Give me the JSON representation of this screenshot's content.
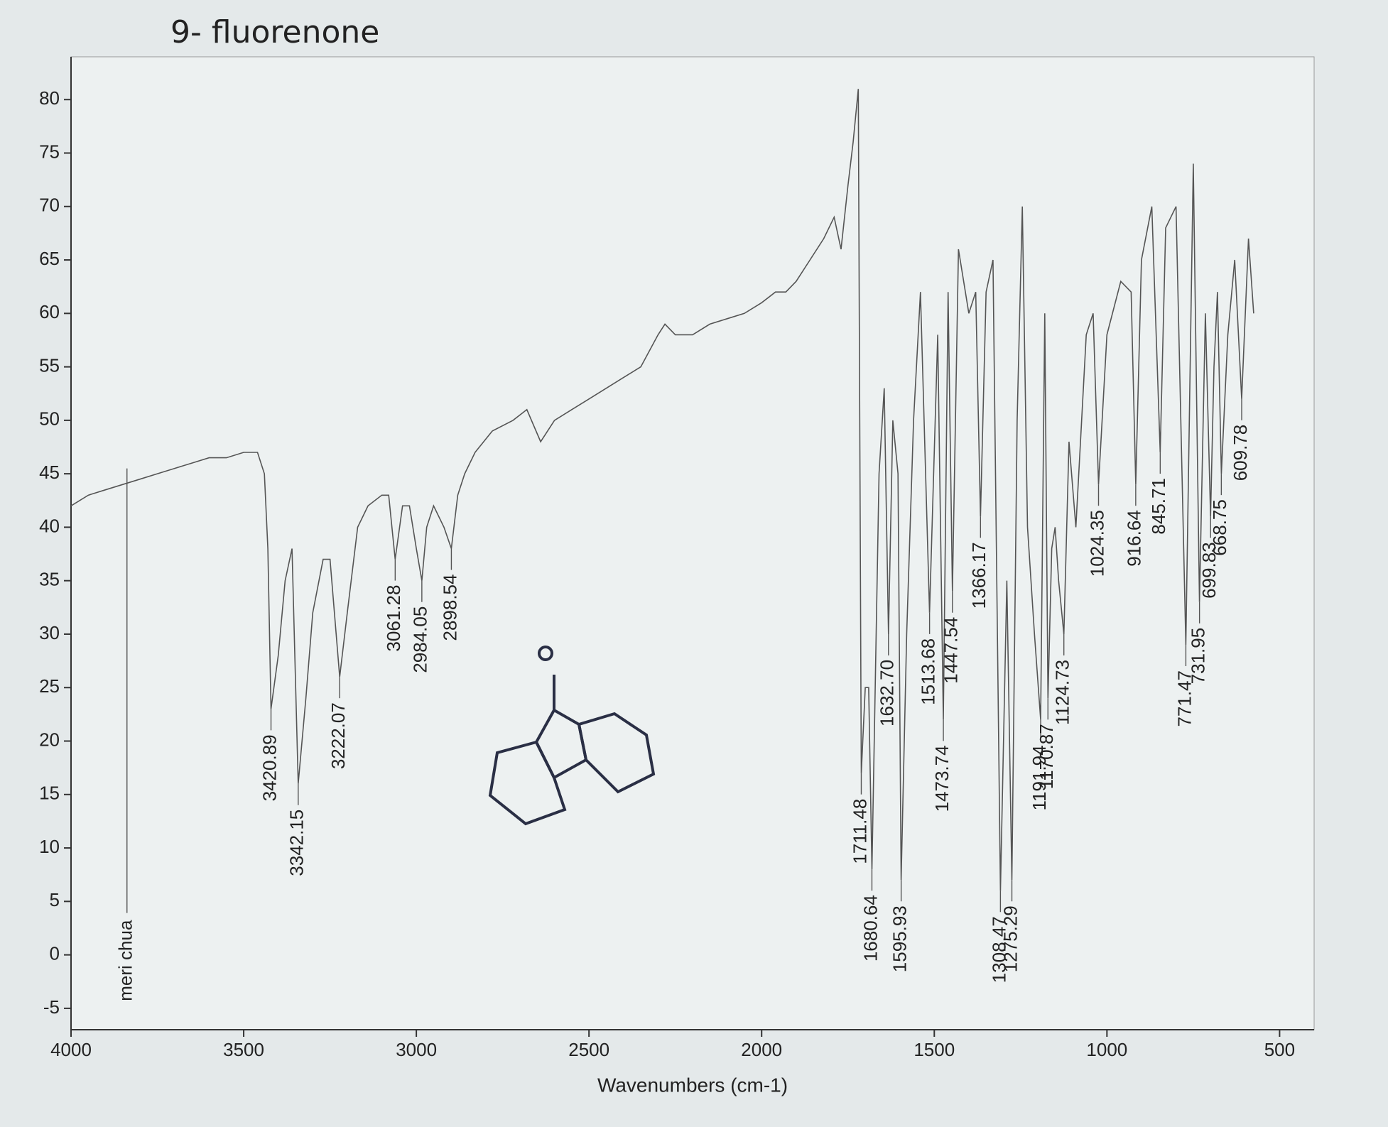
{
  "chart_data": {
    "type": "line",
    "title": "9- fluorenone",
    "x_label": "Wavenumbers (cm-1)",
    "annotation": "meri chua",
    "xlim": [
      4000,
      400
    ],
    "xticks": [
      4000,
      3500,
      3000,
      2500,
      2000,
      1500,
      1000,
      500
    ],
    "ylim": [
      -7,
      84
    ],
    "yticks": [
      -5,
      0,
      5,
      10,
      15,
      20,
      25,
      30,
      35,
      40,
      45,
      50,
      55,
      60,
      65,
      70,
      75,
      80
    ],
    "color": "#555555",
    "x": [
      4000,
      3950,
      3900,
      3850,
      3800,
      3750,
      3700,
      3650,
      3600,
      3550,
      3500,
      3460,
      3440,
      3430,
      3420.89,
      3400,
      3380,
      3360,
      3342.15,
      3320,
      3300,
      3270,
      3250,
      3222.07,
      3200,
      3170,
      3140,
      3100,
      3080,
      3061.28,
      3040,
      3020,
      3000,
      2984.05,
      2970,
      2950,
      2920,
      2898.54,
      2880,
      2860,
      2830,
      2780,
      2720,
      2680,
      2640,
      2600,
      2550,
      2500,
      2450,
      2400,
      2350,
      2300,
      2280,
      2250,
      2200,
      2150,
      2100,
      2050,
      2000,
      1960,
      1930,
      1900,
      1860,
      1820,
      1790,
      1770,
      1750,
      1735,
      1720,
      1711.48,
      1700,
      1690,
      1680.64,
      1660,
      1645,
      1632.7,
      1620,
      1605,
      1595.93,
      1580,
      1560,
      1540,
      1513.68,
      1490,
      1473.74,
      1460,
      1447.54,
      1430,
      1400,
      1380,
      1366.17,
      1350,
      1330,
      1308.47,
      1290,
      1275.29,
      1260,
      1245,
      1230,
      1210,
      1191.94,
      1180,
      1170.87,
      1160,
      1150,
      1140,
      1124.73,
      1110,
      1090,
      1060,
      1040,
      1024.35,
      1000,
      960,
      930,
      916.64,
      900,
      870,
      845.71,
      830,
      800,
      771.47,
      750,
      731.95,
      715,
      699.83,
      690,
      680,
      668.75,
      650,
      630,
      609.78,
      590,
      575
    ],
    "values": [
      42,
      43,
      43.5,
      44,
      44.5,
      45,
      45.5,
      46,
      46.5,
      46.5,
      47,
      47,
      45,
      38,
      23,
      28,
      35,
      38,
      16,
      24,
      32,
      37,
      37,
      26,
      32,
      40,
      42,
      43,
      43,
      37,
      42,
      42,
      38,
      35,
      40,
      42,
      40,
      38,
      43,
      45,
      47,
      49,
      50,
      51,
      48,
      50,
      51,
      52,
      53,
      54,
      55,
      58,
      59,
      58,
      58,
      59,
      59.5,
      60,
      61,
      62,
      62,
      63,
      65,
      67,
      69,
      66,
      72,
      76,
      81,
      17,
      25,
      25,
      8,
      45,
      53,
      30,
      50,
      45,
      7,
      30,
      50,
      62,
      32,
      58,
      22,
      62,
      34,
      66,
      60,
      62,
      41,
      62,
      65,
      6,
      35,
      7,
      50,
      70,
      40,
      30,
      22,
      60,
      24,
      38,
      40,
      35,
      30,
      48,
      40,
      58,
      60,
      44,
      58,
      63,
      62,
      44,
      65,
      70,
      47,
      68,
      70,
      29,
      74,
      33,
      60,
      41,
      55,
      62,
      45,
      58,
      65,
      52,
      67,
      60
    ],
    "peaks": [
      {
        "x": 3420.89,
        "y": 23
      },
      {
        "x": 3342.15,
        "y": 16
      },
      {
        "x": 3222.07,
        "y": 26
      },
      {
        "x": 3061.28,
        "y": 37
      },
      {
        "x": 2984.05,
        "y": 35
      },
      {
        "x": 2898.54,
        "y": 38
      },
      {
        "x": 1711.48,
        "y": 17
      },
      {
        "x": 1680.64,
        "y": 8
      },
      {
        "x": 1632.7,
        "y": 30,
        "label": "1632.70"
      },
      {
        "x": 1595.93,
        "y": 7
      },
      {
        "x": 1513.68,
        "y": 32
      },
      {
        "x": 1473.74,
        "y": 22
      },
      {
        "x": 1447.54,
        "y": 34
      },
      {
        "x": 1366.17,
        "y": 41
      },
      {
        "x": 1308.47,
        "y": 6
      },
      {
        "x": 1275.29,
        "y": 7
      },
      {
        "x": 1191.94,
        "y": 22
      },
      {
        "x": 1170.87,
        "y": 24
      },
      {
        "x": 1124.73,
        "y": 30
      },
      {
        "x": 1024.35,
        "y": 44
      },
      {
        "x": 916.64,
        "y": 44
      },
      {
        "x": 845.71,
        "y": 47
      },
      {
        "x": 771.47,
        "y": 29
      },
      {
        "x": 731.95,
        "y": 33
      },
      {
        "x": 699.83,
        "y": 41
      },
      {
        "x": 668.75,
        "y": 45
      },
      {
        "x": 609.78,
        "y": 52
      }
    ]
  }
}
